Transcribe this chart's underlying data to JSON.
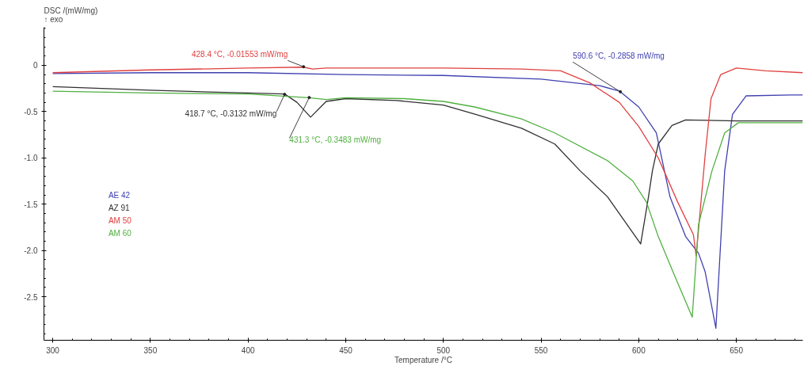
{
  "chart_data": {
    "type": "line",
    "xlabel": "Temperature /°C",
    "ylabel": "DSC /(mW/mg)\n↑ exo",
    "xlim": [
      295.5,
      684
    ],
    "ylim": [
      -2.97,
      0.41
    ],
    "xticks": [
      300,
      350,
      400,
      450,
      500,
      550,
      600,
      650
    ],
    "yticks": [
      {
        "value": 0,
        "label": "0"
      },
      {
        "value": -0.5,
        "label": "-0.5"
      },
      {
        "value": -1,
        "label": "-1.0"
      },
      {
        "value": -1.5,
        "label": "-1.5"
      },
      {
        "value": -2,
        "label": "-2.0"
      },
      {
        "value": -2.5,
        "label": "-2.5"
      }
    ],
    "grid": false,
    "legend": "left",
    "marker": "none",
    "line_style": "solid",
    "series": [
      {
        "name": "AE 42",
        "color": "#4040b0",
        "x": [
          300,
          350,
          400,
          450,
          500,
          550,
          580,
          590.3,
          600,
          609,
          616,
          624,
          630.6,
          634,
          639.5,
          644,
          648,
          655,
          678,
          684
        ],
        "values": [
          -0.09,
          -0.08,
          -0.08,
          -0.1,
          -0.11,
          -0.15,
          -0.22,
          -0.28,
          -0.45,
          -0.73,
          -1.42,
          -1.85,
          -2.03,
          -2.23,
          -2.84,
          -1.14,
          -0.53,
          -0.33,
          -0.32,
          -0.32
        ]
      },
      {
        "name": "AZ 91",
        "color": "#303030",
        "x": [
          300,
          350,
          400,
          418.7,
          425,
          432,
          440,
          450,
          476,
          500,
          516.5,
          540,
          557,
          570,
          584,
          594,
          601,
          605,
          607,
          610,
          617,
          624,
          650,
          684
        ],
        "values": [
          -0.23,
          -0.27,
          -0.3,
          -0.31,
          -0.4,
          -0.56,
          -0.39,
          -0.36,
          -0.38,
          -0.43,
          -0.53,
          -0.68,
          -0.85,
          -1.14,
          -1.42,
          -1.72,
          -1.93,
          -1.42,
          -1.14,
          -0.85,
          -0.65,
          -0.59,
          -0.6,
          -0.6
        ]
      },
      {
        "name": "AM 50",
        "color": "#e04040",
        "x": [
          300,
          350,
          400,
          428.4,
          433,
          440,
          500,
          540,
          560,
          575,
          590,
          600,
          610,
          620,
          628,
          629.4,
          634,
          637,
          642,
          650,
          665,
          684
        ],
        "values": [
          -0.08,
          -0.05,
          -0.03,
          -0.02,
          -0.04,
          -0.03,
          -0.03,
          -0.04,
          -0.06,
          -0.19,
          -0.4,
          -0.66,
          -1.0,
          -1.48,
          -1.83,
          -2.06,
          -0.97,
          -0.36,
          -0.1,
          -0.03,
          -0.06,
          -0.08
        ]
      },
      {
        "name": "AM 60",
        "color": "#50b040",
        "x": [
          300,
          350,
          400,
          431.3,
          440,
          450,
          480,
          500,
          516,
          540,
          557,
          584,
          597,
          604,
          610,
          618.5,
          627.4,
          630.6,
          637.5,
          644,
          651,
          684
        ],
        "values": [
          -0.28,
          -0.3,
          -0.31,
          -0.35,
          -0.37,
          -0.35,
          -0.36,
          -0.39,
          -0.45,
          -0.58,
          -0.73,
          -1.03,
          -1.25,
          -1.48,
          -1.85,
          -2.28,
          -2.72,
          -1.72,
          -1.14,
          -0.73,
          -0.62,
          -0.62
        ]
      }
    ],
    "annotations": [
      {
        "text": "590.6 °C, -0.2858 mW/mg",
        "x": 590.6,
        "y": -0.2858
      },
      {
        "text": "418.7 °C, -0.3132 mW/mg",
        "x": 418.7,
        "y": -0.3132
      },
      {
        "text": "428.4 °C, -0.01553 mW/mg",
        "x": 428.4,
        "y": -0.01553
      },
      {
        "text": "431.3 °C, -0.3483 mW/mg",
        "x": 431.3,
        "y": -0.3483
      }
    ]
  }
}
